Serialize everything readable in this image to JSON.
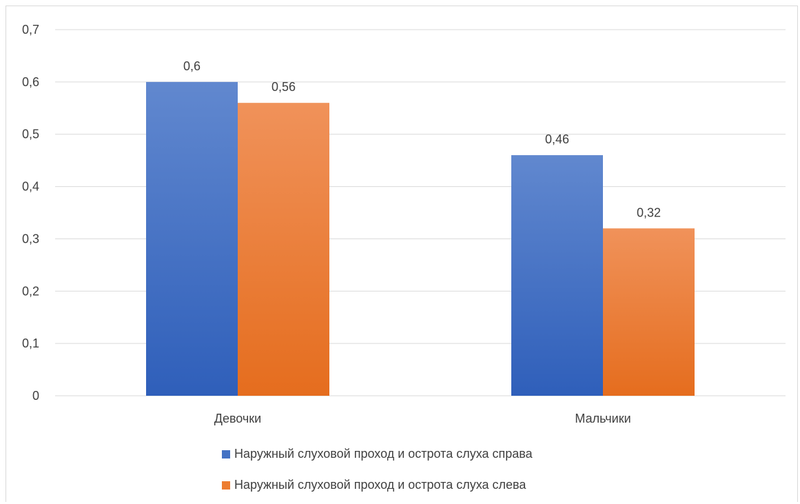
{
  "chart_data": {
    "type": "bar",
    "categories": [
      "Девочки",
      "Мальчики"
    ],
    "series": [
      {
        "name": "Наружный слуховой проход и острота слуха справа",
        "values": [
          0.6,
          0.46
        ],
        "labels": [
          "0,6",
          "0,46"
        ],
        "color": "#4472c4"
      },
      {
        "name": "Наружный слуховой проход и острота слуха слева",
        "values": [
          0.56,
          0.32
        ],
        "labels": [
          "0,56",
          "0,32"
        ],
        "color": "#ed7d31"
      }
    ],
    "ylim": [
      0,
      0.7
    ],
    "yticks": [
      0,
      0.1,
      0.2,
      0.3,
      0.4,
      0.5,
      0.6,
      0.7
    ],
    "ytick_labels": [
      "0",
      "0,1",
      "0,2",
      "0,3",
      "0,4",
      "0,5",
      "0,6",
      "0,7"
    ],
    "grid": true,
    "legend_position": "bottom"
  }
}
